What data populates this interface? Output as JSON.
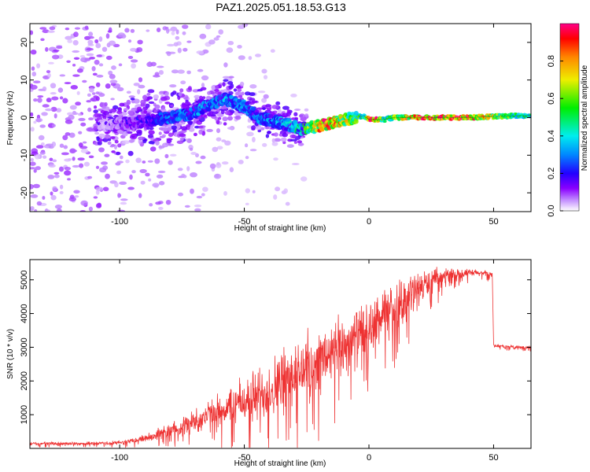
{
  "figure": {
    "title": "PAZ1.2025.051.18.53.G13"
  },
  "chart_data": [
    {
      "type": "heatmap",
      "xlabel": "Height of straight line (km)",
      "ylabel": "Frequency (Hz)",
      "xlim": [
        -136,
        65
      ],
      "ylim": [
        -25,
        25
      ],
      "x_ticks": [
        -100,
        -50,
        0,
        50
      ],
      "y_ticks": [
        -20,
        -10,
        0,
        10,
        20
      ],
      "grid": false,
      "colorbar": {
        "label": "Normalized spectral amplitude",
        "range": [
          0,
          1
        ],
        "ticks": [
          0.0,
          0.2,
          0.4,
          0.6,
          0.8
        ],
        "colormap": "rainbow (purple-blue-cyan-green-yellow-red-magenta)"
      },
      "ridge": {
        "description": "dominant spectral line frequency vs height",
        "x": [
          -105,
          -90,
          -80,
          -72,
          -65,
          -58,
          -50,
          -44,
          -38,
          -32,
          -27,
          -22,
          -18,
          -12,
          -6,
          -2,
          0,
          3,
          6,
          10,
          20,
          30,
          40,
          50,
          60,
          65
        ],
        "y": [
          -2,
          -1,
          0,
          1,
          3,
          5,
          3,
          0,
          -1,
          -2,
          -3,
          -2.5,
          -2,
          -1,
          0,
          0.5,
          -0.5,
          -0.5,
          -0.5,
          0,
          0,
          0,
          0,
          0.3,
          0.5,
          0.5
        ],
        "amplitude": [
          0.05,
          0.15,
          0.3,
          0.3,
          0.35,
          0.35,
          0.3,
          0.3,
          0.35,
          0.4,
          0.5,
          0.7,
          0.95,
          0.8,
          0.6,
          0.5,
          0.95,
          0.95,
          0.5,
          0.6,
          0.95,
          0.95,
          0.95,
          0.7,
          0.5,
          0.5
        ]
      }
    },
    {
      "type": "line",
      "xlabel": "Height of straight line (km)",
      "ylabel": "SNR (10 * v/v)",
      "xlim": [
        -136,
        65
      ],
      "ylim": [
        0,
        5600
      ],
      "x_ticks": [
        -100,
        -50,
        0,
        50
      ],
      "y_ticks": [
        1000,
        2000,
        3000,
        4000,
        5000
      ],
      "grid": false,
      "series": [
        {
          "color": "#ee3333",
          "x": [
            -136,
            -120,
            -105,
            -100,
            -95,
            -90,
            -85,
            -80,
            -75,
            -70,
            -65,
            -60,
            -55,
            -50,
            -45,
            -40,
            -35,
            -30,
            -25,
            -20,
            -15,
            -10,
            -5,
            0,
            5,
            10,
            15,
            20,
            25,
            30,
            35,
            40,
            45,
            49.5,
            50,
            55,
            60,
            65
          ],
          "y": [
            150,
            140,
            150,
            170,
            220,
            300,
            400,
            520,
            650,
            800,
            950,
            1100,
            1250,
            1400,
            1550,
            1750,
            1950,
            2200,
            2400,
            2600,
            2800,
            3050,
            3300,
            3550,
            3850,
            4150,
            4450,
            4750,
            4950,
            5100,
            5180,
            5200,
            5200,
            5150,
            3050,
            3020,
            3000,
            2990
          ],
          "noise_amplitude": [
            60,
            60,
            60,
            80,
            100,
            150,
            200,
            280,
            350,
            450,
            550,
            650,
            750,
            900,
            1000,
            1100,
            1200,
            1250,
            1250,
            1200,
            1150,
            1100,
            1050,
            1000,
            950,
            900,
            800,
            650,
            450,
            300,
            200,
            150,
            120,
            100,
            60,
            60,
            60,
            60
          ]
        }
      ]
    }
  ],
  "colors": {
    "line": "#ee3333",
    "background": "#ffffff"
  }
}
